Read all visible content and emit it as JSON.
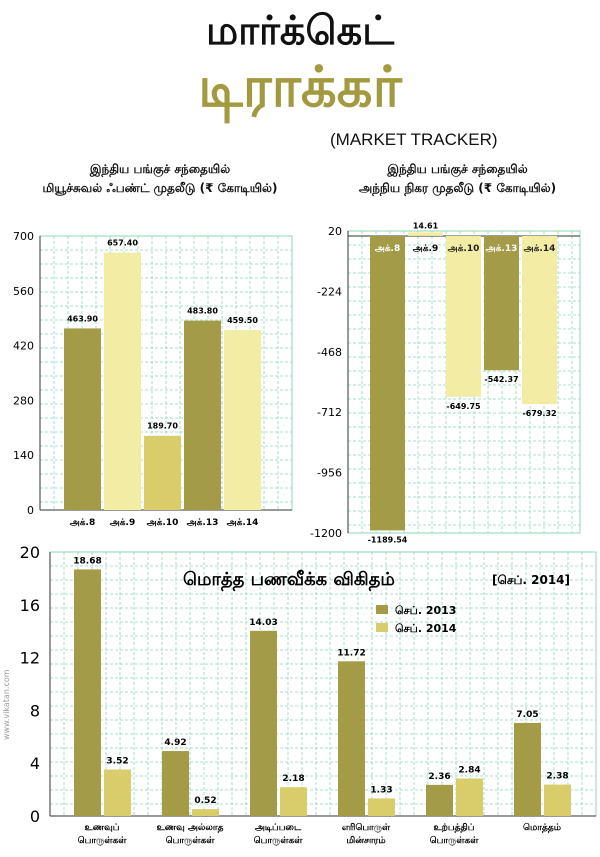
{
  "header": {
    "title_line1": "மார்க்கெட்",
    "title_line2": "டிராக்கர்",
    "subtitle": "(MARKET TRACKER)"
  },
  "credit": "www.vikatan.com",
  "colors": {
    "dark": "#a39b47",
    "light": "#f2eca4",
    "mid": "#d8cd6a",
    "grid": "#8fd7b7"
  },
  "chart_data": [
    {
      "type": "bar",
      "title_line1": "இந்திய பங்குச் சந்தையில்",
      "title_line2": "மியூச்சுவல் ஃபண்ட் முதலீடு (₹ கோடியில்)",
      "categories": [
        "அக்.8",
        "அக்.9",
        "அக்.10",
        "அக்.13",
        "அக்.14"
      ],
      "values": [
        463.9,
        657.4,
        189.7,
        483.8,
        459.5
      ],
      "value_labels": [
        "463.90",
        "657.40",
        "189.70",
        "483.80",
        "459.50"
      ],
      "ylim": [
        0,
        700
      ],
      "yticks": [
        0,
        140,
        280,
        420,
        560,
        700
      ]
    },
    {
      "type": "bar",
      "title_line1": "இந்திய பங்குச் சந்தையில்",
      "title_line2": "அந்நிய நிகர முதலீடு (₹ கோடியில்)",
      "categories": [
        "அக்.8",
        "அக்.9",
        "அக்.10",
        "அக்.13",
        "அக்.14"
      ],
      "values": [
        -1189.54,
        14.61,
        -649.75,
        -542.37,
        -679.32
      ],
      "value_labels": [
        "-1189.54",
        "14.61",
        "-649.75",
        "-542.37",
        "-679.32"
      ],
      "ylim": [
        -1200,
        20
      ],
      "yticks": [
        20,
        -224,
        -468,
        -712,
        -956,
        -1200
      ]
    },
    {
      "type": "bar",
      "title": "மொத்த பணவீக்க விகிதம்",
      "title_suffix": "[செப். 2014]",
      "categories": [
        [
          "உணவுப்",
          "பொருள்கள்"
        ],
        [
          "உணவு அல்லாத",
          "பொருள்கள்"
        ],
        [
          "அடிப்படை",
          "பொருள்கள்"
        ],
        [
          "எரிபொருள்",
          "மின்சாரம்"
        ],
        [
          "உற்பத்திப்",
          "பொருள்கள்"
        ],
        [
          "மொத்தம்"
        ]
      ],
      "series": [
        {
          "name": "செப். 2013",
          "values": [
            18.68,
            4.92,
            14.03,
            11.72,
            2.36,
            7.05
          ],
          "value_labels": [
            "18.68",
            "4.92",
            "14.03",
            "11.72",
            "2.36",
            "7.05"
          ]
        },
        {
          "name": "செப். 2014",
          "values": [
            3.52,
            0.52,
            2.18,
            1.33,
            2.84,
            2.38
          ],
          "value_labels": [
            "3.52",
            "0.52",
            "2.18",
            "1.33",
            "2.84",
            "2.38"
          ]
        }
      ],
      "ylim": [
        0,
        20
      ],
      "yticks": [
        0,
        4,
        8,
        12,
        16,
        20
      ],
      "legend": "top-right"
    }
  ]
}
